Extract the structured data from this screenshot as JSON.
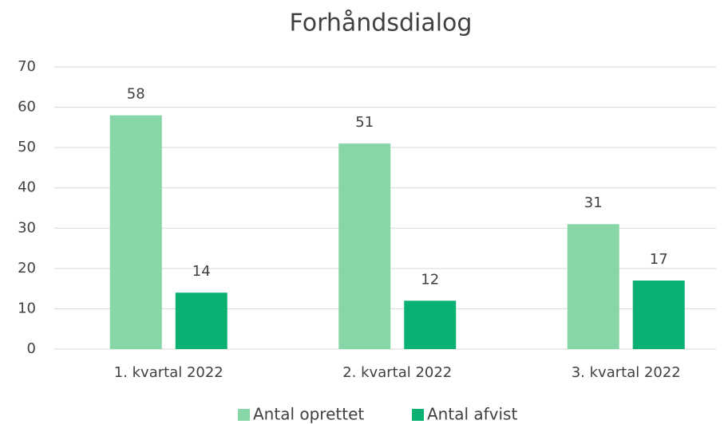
{
  "chart_data": {
    "type": "bar",
    "title": "Forhåndsdialog",
    "categories": [
      "1. kvartal 2022",
      "2. kvartal 2022",
      "3. kvartal 2022"
    ],
    "series": [
      {
        "name": "Antal oprettet",
        "color": "#86d6a8",
        "values": [
          58,
          51,
          31
        ]
      },
      {
        "name": "Antal afvist",
        "color": "#0bb073",
        "values": [
          14,
          12,
          17
        ]
      }
    ],
    "ylim": [
      0,
      70
    ],
    "yticks": [
      0,
      10,
      20,
      30,
      40,
      50,
      60,
      70
    ],
    "grid": true,
    "legend": "bottom"
  }
}
